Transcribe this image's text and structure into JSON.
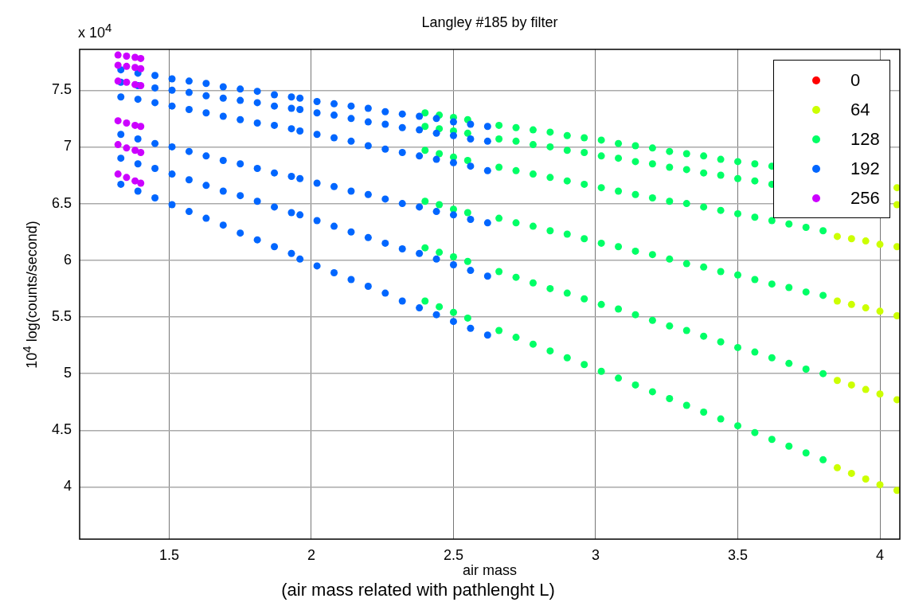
{
  "chart_data": {
    "type": "scatter",
    "title": "Langley #185 by filter",
    "xlabel": "air mass",
    "ylabel": "10$^{4}$ log(counts/second)",
    "annotations": [
      "x 10$^{4}$",
      "(air mass related with pathlenght L)"
    ],
    "xlim": [
      1.185,
      4.07
    ],
    "ylim": [
      3.54,
      7.86
    ],
    "xticks": [
      1.5,
      2,
      2.5,
      3,
      3.5,
      4
    ],
    "yticks": [
      4,
      4.5,
      5,
      5.5,
      6,
      6.5,
      7,
      7.5
    ],
    "grid": true,
    "legend": "top right",
    "marker": "circle",
    "series": [
      {
        "name": "0",
        "color": "#ff0000"
      },
      {
        "name": "64",
        "color": "#ccff00",
        "x": [
          4.06,
          4.06,
          3.85,
          3.9,
          3.95,
          4.0,
          4.06,
          3.85,
          3.9,
          3.95,
          4.0,
          4.06,
          3.85,
          3.9,
          3.95,
          4.0,
          4.06,
          3.85,
          3.9,
          3.95,
          4.0,
          4.06
        ],
        "values": [
          6.64,
          6.49,
          6.21,
          6.19,
          6.17,
          6.14,
          6.12,
          5.64,
          5.61,
          5.58,
          5.55,
          5.51,
          4.94,
          4.9,
          4.86,
          4.82,
          4.77,
          4.17,
          4.12,
          4.07,
          4.02,
          3.97
        ]
      },
      {
        "name": "128",
        "color": "#00ff66",
        "x": [
          2.4,
          2.45,
          2.5,
          2.55,
          2.4,
          2.45,
          2.5,
          2.55,
          2.4,
          2.45,
          2.5,
          2.55,
          2.4,
          2.45,
          2.5,
          2.55,
          2.4,
          2.45,
          2.5,
          2.55,
          2.4,
          2.45,
          2.5,
          2.55,
          2.66,
          2.72,
          2.78,
          2.84,
          2.9,
          2.96,
          3.02,
          3.08,
          3.14,
          3.2,
          3.26,
          3.32,
          3.38,
          3.44,
          3.5,
          3.56,
          3.62,
          2.66,
          2.72,
          2.78,
          2.84,
          2.9,
          2.96,
          3.02,
          3.08,
          3.14,
          3.2,
          3.26,
          3.32,
          3.38,
          3.44,
          3.5,
          3.56,
          3.62,
          2.66,
          2.72,
          2.78,
          2.84,
          2.9,
          2.96,
          3.02,
          3.08,
          3.14,
          3.2,
          3.26,
          3.32,
          3.38,
          3.44,
          3.5,
          3.56,
          3.62,
          3.68,
          3.74,
          3.8,
          2.66,
          2.72,
          2.78,
          2.84,
          2.9,
          2.96,
          3.02,
          3.08,
          3.14,
          3.2,
          3.26,
          3.32,
          3.38,
          3.44,
          3.5,
          3.56,
          3.62,
          3.68,
          3.74,
          3.8,
          2.66,
          2.72,
          2.78,
          2.84,
          2.9,
          2.96,
          3.02,
          3.08,
          3.14,
          3.2,
          3.26,
          3.32,
          3.38,
          3.44,
          3.5,
          3.56,
          3.62,
          3.68,
          3.74,
          3.8,
          2.66,
          2.72,
          2.78,
          2.84,
          2.9,
          2.96,
          3.02,
          3.08,
          3.14,
          3.2,
          3.26,
          3.32,
          3.38,
          3.44,
          3.5,
          3.56,
          3.62,
          3.68,
          3.74,
          3.8
        ],
        "values": [
          7.3,
          7.28,
          7.26,
          7.24,
          7.18,
          7.16,
          7.14,
          7.12,
          6.97,
          6.94,
          6.91,
          6.88,
          6.52,
          6.49,
          6.45,
          6.42,
          6.11,
          6.07,
          6.03,
          5.99,
          5.64,
          5.59,
          5.54,
          5.49,
          7.19,
          7.17,
          7.15,
          7.13,
          7.1,
          7.08,
          7.06,
          7.03,
          7.01,
          6.99,
          6.96,
          6.94,
          6.92,
          6.89,
          6.87,
          6.85,
          6.83,
          7.07,
          7.05,
          7.02,
          7.0,
          6.97,
          6.95,
          6.92,
          6.9,
          6.87,
          6.85,
          6.82,
          6.8,
          6.77,
          6.75,
          6.72,
          6.7,
          6.67,
          6.82,
          6.79,
          6.76,
          6.73,
          6.7,
          6.67,
          6.64,
          6.61,
          6.58,
          6.55,
          6.52,
          6.5,
          6.47,
          6.44,
          6.41,
          6.38,
          6.35,
          6.32,
          6.29,
          6.26,
          6.37,
          6.33,
          6.3,
          6.26,
          6.23,
          6.19,
          6.15,
          6.12,
          6.08,
          6.05,
          6.01,
          5.97,
          5.94,
          5.9,
          5.87,
          5.83,
          5.79,
          5.76,
          5.72,
          5.69,
          5.9,
          5.85,
          5.8,
          5.75,
          5.71,
          5.66,
          5.61,
          5.57,
          5.52,
          5.47,
          5.42,
          5.38,
          5.33,
          5.28,
          5.23,
          5.19,
          5.14,
          5.09,
          5.04,
          5.0,
          5.38,
          5.32,
          5.26,
          5.2,
          5.14,
          5.08,
          5.02,
          4.96,
          4.9,
          4.84,
          4.78,
          4.72,
          4.66,
          4.6,
          4.54,
          4.48,
          4.42,
          4.36,
          4.3,
          4.24
        ]
      },
      {
        "name": "192",
        "color": "#0066ff",
        "x": [
          1.33,
          1.39,
          1.45,
          1.51,
          1.57,
          1.63,
          1.69,
          1.75,
          1.81,
          1.87,
          1.93,
          1.96,
          2.02,
          2.08,
          2.14,
          2.2,
          2.26,
          2.32,
          2.38,
          2.44,
          2.5,
          2.56,
          2.62,
          1.33,
          1.39,
          1.45,
          1.51,
          1.57,
          1.63,
          1.69,
          1.75,
          1.81,
          1.87,
          1.93,
          1.96,
          2.02,
          2.08,
          2.14,
          2.2,
          2.26,
          2.32,
          2.38,
          2.44,
          2.5,
          2.56,
          2.62,
          1.33,
          1.39,
          1.45,
          1.51,
          1.57,
          1.63,
          1.69,
          1.75,
          1.81,
          1.87,
          1.93,
          1.96,
          2.02,
          2.08,
          2.14,
          2.2,
          2.26,
          2.32,
          2.38,
          2.44,
          2.5,
          2.56,
          2.62,
          1.33,
          1.39,
          1.45,
          1.51,
          1.57,
          1.63,
          1.69,
          1.75,
          1.81,
          1.87,
          1.93,
          1.96,
          2.02,
          2.08,
          2.14,
          2.2,
          2.26,
          2.32,
          2.38,
          2.44,
          2.5,
          2.56,
          2.62,
          1.33,
          1.39,
          1.45,
          1.51,
          1.57,
          1.63,
          1.69,
          1.75,
          1.81,
          1.87,
          1.93,
          1.96,
          2.02,
          2.08,
          2.14,
          2.2,
          2.26,
          2.32,
          2.38,
          2.44,
          2.5,
          2.56,
          2.62,
          1.33,
          1.39,
          1.45,
          1.51,
          1.57,
          1.63,
          1.69,
          1.75,
          1.81,
          1.87,
          1.93,
          1.96,
          2.02,
          2.08,
          2.14,
          2.2,
          2.26,
          2.32,
          2.38,
          2.44,
          2.5,
          2.56,
          2.62
        ],
        "values": [
          7.68,
          7.65,
          7.63,
          7.6,
          7.58,
          7.56,
          7.53,
          7.51,
          7.49,
          7.46,
          7.44,
          7.43,
          7.4,
          7.38,
          7.36,
          7.34,
          7.31,
          7.29,
          7.27,
          7.25,
          7.22,
          7.2,
          7.18,
          7.57,
          7.54,
          7.52,
          7.5,
          7.48,
          7.45,
          7.43,
          7.41,
          7.39,
          7.36,
          7.34,
          7.33,
          7.3,
          7.28,
          7.25,
          7.22,
          7.2,
          7.17,
          7.15,
          7.12,
          7.1,
          7.07,
          7.05,
          7.44,
          7.42,
          7.39,
          7.36,
          7.33,
          7.3,
          7.27,
          7.24,
          7.21,
          7.19,
          7.16,
          7.14,
          7.11,
          7.08,
          7.05,
          7.01,
          6.98,
          6.95,
          6.92,
          6.89,
          6.86,
          6.83,
          6.79,
          7.11,
          7.07,
          7.03,
          7.0,
          6.96,
          6.92,
          6.88,
          6.85,
          6.81,
          6.77,
          6.74,
          6.72,
          6.68,
          6.65,
          6.61,
          6.58,
          6.54,
          6.5,
          6.47,
          6.43,
          6.4,
          6.36,
          6.33,
          6.9,
          6.85,
          6.81,
          6.76,
          6.71,
          6.66,
          6.61,
          6.57,
          6.52,
          6.47,
          6.42,
          6.4,
          6.35,
          6.3,
          6.25,
          6.2,
          6.15,
          6.1,
          6.06,
          6.01,
          5.96,
          5.91,
          5.86,
          6.67,
          6.61,
          6.55,
          6.49,
          6.43,
          6.37,
          6.31,
          6.24,
          6.18,
          6.12,
          6.06,
          6.01,
          5.95,
          5.89,
          5.83,
          5.77,
          5.71,
          5.64,
          5.58,
          5.52,
          5.46,
          5.4,
          5.34
        ]
      },
      {
        "name": "256",
        "color": "#cc00ff",
        "x": [
          1.32,
          1.35,
          1.38,
          1.4,
          1.32,
          1.35,
          1.38,
          1.4,
          1.32,
          1.35,
          1.38,
          1.4,
          1.32,
          1.35,
          1.38,
          1.4,
          1.32,
          1.35,
          1.38,
          1.4,
          1.32,
          1.35,
          1.38,
          1.4
        ],
        "values": [
          7.81,
          7.8,
          7.79,
          7.78,
          7.72,
          7.71,
          7.7,
          7.69,
          7.58,
          7.57,
          7.55,
          7.54,
          7.23,
          7.21,
          7.19,
          7.18,
          7.02,
          6.99,
          6.97,
          6.95,
          6.76,
          6.73,
          6.7,
          6.68
        ]
      }
    ]
  }
}
